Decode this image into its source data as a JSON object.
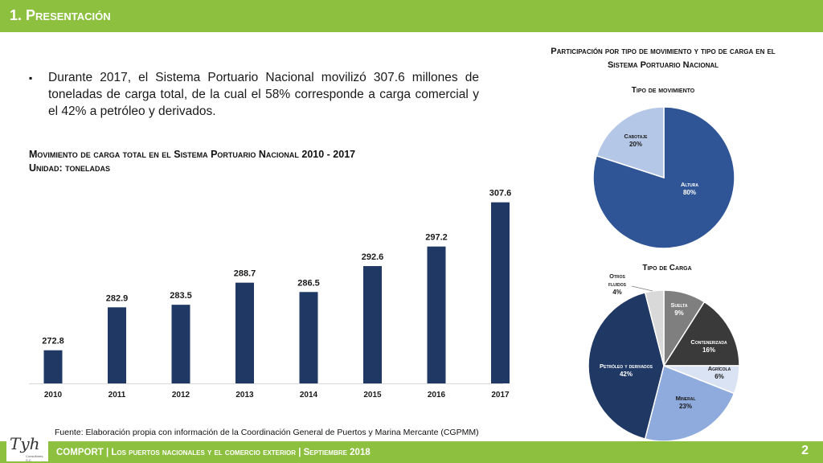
{
  "header": {
    "title": "1. Presentación"
  },
  "bullet": {
    "mark": "▪",
    "text": "Durante 2017, el Sistema Portuario Nacional movilizó 307.6 millones de toneladas de carga total, de la cual el 58% corresponde a carga comercial y el 42% a petróleo y derivados."
  },
  "bar_section": {
    "title_line1": "Movimiento de carga total en el Sistema Portuario Nacional 2010 - 2017",
    "title_line2": "Unidad: toneladas"
  },
  "right_section": {
    "title_line1": "Participación por tipo de movimiento y tipo de carga en el",
    "title_line2": "Sistema Portuario Nacional"
  },
  "chart_data": [
    {
      "type": "bar",
      "categories": [
        "2010",
        "2011",
        "2012",
        "2013",
        "2014",
        "2015",
        "2016",
        "2017"
      ],
      "values": [
        272.8,
        282.9,
        283.5,
        288.7,
        286.5,
        292.6,
        297.2,
        307.6
      ],
      "data_labels": [
        "272.8",
        "282.9",
        "283.5",
        "288.7",
        "286.5",
        "292.6",
        "297.2",
        "307.6"
      ],
      "ylim": [
        265,
        310
      ],
      "color": "#1f3864"
    },
    {
      "type": "pie",
      "title": "Tipo de movimiento",
      "slices": [
        {
          "label": "Altura",
          "pct_label": "80%",
          "value": 80,
          "color": "#2f5597",
          "text_color": "#ffffff"
        },
        {
          "label": "Cabotaje",
          "pct_label": "20%",
          "value": 20,
          "color": "#b4c7e7",
          "text_color": "#1a1a1a"
        }
      ]
    },
    {
      "type": "pie",
      "title": "Tipo de Carga",
      "slices": [
        {
          "label": "Suelta",
          "pct_label": "9%",
          "value": 9,
          "color": "#7f7f7f",
          "text_color": "#ffffff"
        },
        {
          "label": "Contenerizada",
          "pct_label": "16%",
          "value": 16,
          "color": "#3a3a3a",
          "text_color": "#ffffff"
        },
        {
          "label": "Agrícola",
          "pct_label": "6%",
          "value": 6,
          "color": "#dae3f3",
          "text_color": "#1a1a1a"
        },
        {
          "label": "Mineral",
          "pct_label": "23%",
          "value": 23,
          "color": "#8faadc",
          "text_color": "#1a1a1a"
        },
        {
          "label": "Petróleo y derivados",
          "pct_label": "42%",
          "value": 42,
          "color": "#1f3864",
          "text_color": "#ffffff"
        },
        {
          "label": "Otros fluidos",
          "pct_label": "4%",
          "value": 4,
          "color": "#d9d9d9",
          "text_color": "#1a1a1a"
        }
      ]
    }
  ],
  "source": "Fuente: Elaboración propia con información de la Coordinación General de Puertos y Marina Mercante (CGPMM)",
  "footer": {
    "text": "COMPORT | Los puertos nacionales y el comercio exterior | Septiembre 2018",
    "page": "2"
  },
  "logo": {
    "text": "Tyh",
    "sub": "Consultores, S.C."
  },
  "colors": {
    "brand_green": "#8dc03f",
    "bar_navy": "#1f3864"
  }
}
